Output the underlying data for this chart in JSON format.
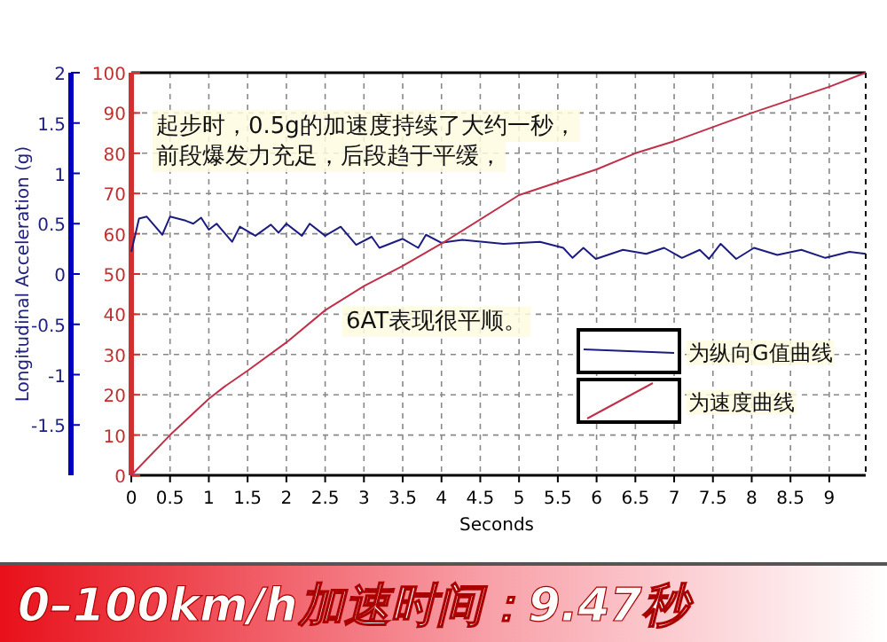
{
  "chart_data": {
    "type": "line",
    "xlabel": "Seconds",
    "ylabel": "Longitudinal Acceleration (g)",
    "x": [
      0,
      0.5,
      1,
      1.2,
      1.5,
      2,
      2.5,
      3,
      3.5,
      4.04,
      5,
      6,
      6.5,
      7,
      8,
      9,
      9.47
    ],
    "series": [
      {
        "name": "为纵向G值曲线",
        "color": "#1c1c80",
        "x": [
          0,
          0.1,
          0.2,
          0.4,
          0.5,
          0.7,
          0.8,
          0.9,
          1.0,
          1.1,
          1.3,
          1.4,
          1.6,
          1.8,
          1.9,
          2.0,
          2.2,
          2.3,
          2.5,
          2.7,
          2.9,
          3.1,
          3.2,
          3.5,
          3.7,
          3.8,
          4.0,
          4.27,
          4.8,
          5.27,
          5.57,
          5.69,
          5.83,
          5.99,
          6.34,
          6.64,
          6.87,
          7.1,
          7.33,
          7.45,
          7.6,
          7.8,
          8.03,
          8.33,
          8.64,
          8.95,
          9.26,
          9.47
        ],
        "values": [
          0.22,
          0.55,
          0.57,
          0.39,
          0.57,
          0.53,
          0.5,
          0.56,
          0.44,
          0.5,
          0.32,
          0.47,
          0.38,
          0.49,
          0.41,
          0.5,
          0.38,
          0.5,
          0.38,
          0.47,
          0.29,
          0.37,
          0.26,
          0.35,
          0.26,
          0.39,
          0.31,
          0.34,
          0.3,
          0.32,
          0.26,
          0.16,
          0.26,
          0.15,
          0.24,
          0.2,
          0.26,
          0.16,
          0.24,
          0.15,
          0.3,
          0.15,
          0.26,
          0.19,
          0.24,
          0.16,
          0.22,
          0.2
        ]
      },
      {
        "name": "为速度曲线",
        "color": "#c0304a",
        "axis": "y2",
        "values": [
          0,
          10,
          19,
          22,
          26,
          33,
          41,
          47,
          52,
          58,
          69.6,
          76,
          80,
          83,
          90,
          96.5,
          100
        ]
      }
    ],
    "xlim": [
      0,
      9.47
    ],
    "xticks": [
      0,
      0.5,
      1,
      1.5,
      2,
      2.5,
      3,
      3.5,
      4,
      4.5,
      5,
      5.5,
      6,
      6.5,
      7,
      7.5,
      8,
      8.5,
      9
    ],
    "ylim": [
      -2,
      2
    ],
    "yticks": [
      -1.5,
      -1,
      -0.5,
      0,
      0.5,
      1,
      1.5,
      2
    ],
    "y2lim": [
      0,
      100
    ],
    "y2ticks": [
      0,
      10,
      20,
      30,
      40,
      50,
      60,
      70,
      80,
      90,
      100
    ],
    "grid": true,
    "legend": "bottom right",
    "annotations": [
      "起步时，0.5g的加速度持续了大约一秒，",
      "前段爆发力充足，后段趋于平缓，",
      "6AT表现很平顺。",
      "0–100km/h加速时间：9.47秒"
    ]
  }
}
